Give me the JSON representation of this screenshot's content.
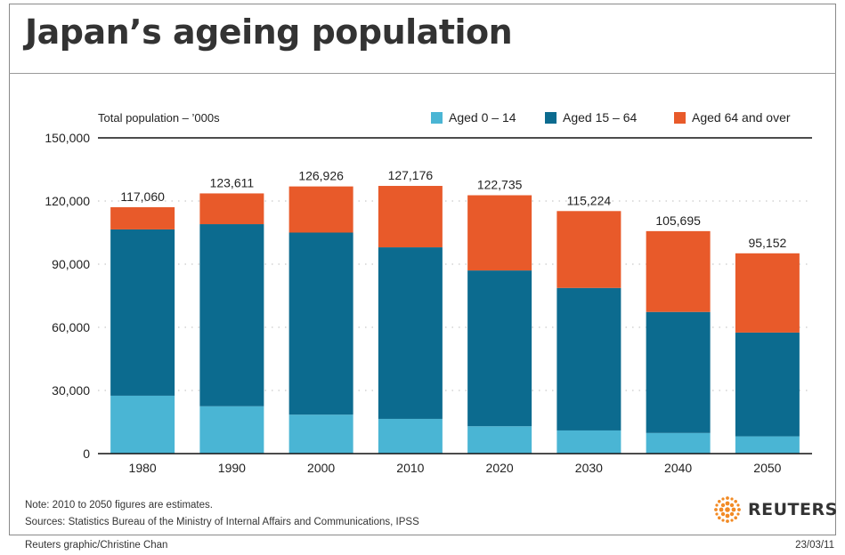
{
  "title": "Japan’s ageing population",
  "note": "Note: 2010 to 2050 figures are estimates.",
  "sources": "Sources: Statistics Bureau of the Ministry of Internal Affairs and Communications, IPSS",
  "brand": "REUTERS",
  "credit": "Reuters graphic/Christine Chan",
  "date": "23/03/11",
  "colors": {
    "young": "#4ab5d4",
    "working": "#0c6b8f",
    "elderly": "#e85a2a",
    "axis": "#111111",
    "grid": "#bdbdbd",
    "brand_orange": "#f28a24"
  },
  "chart_data": {
    "type": "bar",
    "stacked": true,
    "ylabel": "Total population – ’000s",
    "ylim": [
      0,
      150000
    ],
    "yticks": [
      0,
      30000,
      60000,
      90000,
      120000,
      150000
    ],
    "ytick_labels": [
      "0",
      "30,000",
      "60,000",
      "90,000",
      "120,000",
      "150,000"
    ],
    "categories": [
      "1980",
      "1990",
      "2000",
      "2010",
      "2020",
      "2030",
      "2040",
      "2050"
    ],
    "series": [
      {
        "name": "Aged 0 – 14",
        "color": "#4ab5d4",
        "values": [
          27500,
          22500,
          18500,
          16500,
          13000,
          11000,
          9800,
          8200
        ]
      },
      {
        "name": "Aged 15 – 64",
        "color": "#0c6b8f",
        "values": [
          79000,
          86500,
          86500,
          81500,
          74000,
          67700,
          57500,
          49300
        ]
      },
      {
        "name": "Aged 64 and over",
        "color": "#e85a2a",
        "values": [
          10560,
          14611,
          21926,
          29176,
          35735,
          36524,
          38395,
          37652
        ]
      }
    ],
    "totals": [
      117060,
      123611,
      126926,
      127176,
      122735,
      115224,
      105695,
      95152
    ],
    "total_labels": [
      "117,060",
      "123,611",
      "126,926",
      "127,176",
      "122,735",
      "115,224",
      "105,695",
      "95,152"
    ],
    "legend_position": "top-right",
    "grid": "dotted horizontal"
  }
}
